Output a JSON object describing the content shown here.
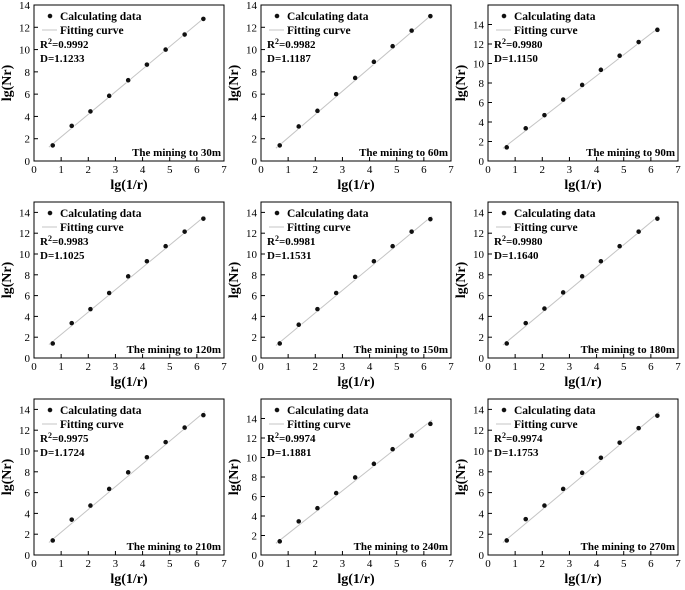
{
  "colors": {
    "background": "#ffffff",
    "axis": "#000000",
    "marker": "#111111",
    "fit_line": "#c4c4c4"
  },
  "chart_data": [
    {
      "type": "scatter",
      "caption": "The mining to 30m",
      "r2_label": "R",
      "r2_sup": "2",
      "r2_value": "=0.9992",
      "d_label": "D=1.1233",
      "legend": [
        "Calculating data",
        "Fitting curve"
      ],
      "xlabel": "lg(1/r)",
      "ylabel": "lg(Nr)",
      "xlim": [
        0,
        7
      ],
      "ylim": [
        0,
        14
      ],
      "xticks": [
        0,
        1,
        2,
        3,
        4,
        5,
        6,
        7
      ],
      "yticks": [
        0,
        2,
        4,
        6,
        8,
        10,
        12,
        14
      ],
      "x": [
        0.69,
        1.39,
        2.08,
        2.77,
        3.47,
        4.16,
        4.85,
        5.55,
        6.24
      ],
      "y": [
        1.4,
        3.15,
        4.45,
        5.85,
        7.25,
        8.65,
        10.0,
        11.35,
        12.75
      ],
      "fit": [
        [
          0.55,
          1.25
        ],
        [
          6.3,
          12.9
        ]
      ]
    },
    {
      "type": "scatter",
      "caption": "The mining to 60m",
      "r2_label": "R",
      "r2_sup": "2",
      "r2_value": "=0.9982",
      "d_label": "D=1.1187",
      "legend": [
        "Calculating data",
        "Fitting curve"
      ],
      "xlabel": "lg(1/r)",
      "ylabel": "lg(Nr)",
      "xlim": [
        0,
        7
      ],
      "ylim": [
        0,
        14
      ],
      "xticks": [
        0,
        1,
        2,
        3,
        4,
        5,
        6,
        7
      ],
      "yticks": [
        0,
        2,
        4,
        6,
        8,
        10,
        12,
        14
      ],
      "x": [
        0.69,
        1.39,
        2.08,
        2.77,
        3.47,
        4.16,
        4.85,
        5.55,
        6.24
      ],
      "y": [
        1.4,
        3.1,
        4.5,
        6.0,
        7.45,
        8.9,
        10.3,
        11.7,
        13.0
      ],
      "fit": [
        [
          0.55,
          1.15
        ],
        [
          6.3,
          13.15
        ]
      ]
    },
    {
      "type": "scatter",
      "caption": "The mining to 90m",
      "r2_label": "R",
      "r2_sup": "2",
      "r2_value": "=0.9980",
      "d_label": "D=1.1150",
      "legend": [
        "Calculating data",
        "Fitting curve"
      ],
      "xlabel": "lg(1/r)",
      "ylabel": "lg(Nr)",
      "xlim": [
        0,
        7
      ],
      "ylim": [
        0,
        16
      ],
      "xticks": [
        0,
        1,
        2,
        3,
        4,
        5,
        6,
        7
      ],
      "yticks": [
        0,
        2,
        4,
        6,
        8,
        10,
        12,
        14
      ],
      "x": [
        0.69,
        1.39,
        2.08,
        2.77,
        3.47,
        4.16,
        4.85,
        5.55,
        6.24
      ],
      "y": [
        1.4,
        3.35,
        4.7,
        6.3,
        7.8,
        9.35,
        10.8,
        12.2,
        13.45
      ],
      "fit": [
        [
          0.55,
          1.3
        ],
        [
          6.3,
          13.7
        ]
      ]
    },
    {
      "type": "scatter",
      "caption": "The mining to 120m",
      "r2_label": "R",
      "r2_sup": "2",
      "r2_value": "=0.9983",
      "d_label": "D=1.1025",
      "legend": [
        "Calculating data",
        "Fitting curve"
      ],
      "xlabel": "lg(1/r)",
      "ylabel": "lg(Nr)",
      "xlim": [
        0,
        7
      ],
      "ylim": [
        0,
        15
      ],
      "xticks": [
        0,
        1,
        2,
        3,
        4,
        5,
        6,
        7
      ],
      "yticks": [
        0,
        2,
        4,
        6,
        8,
        10,
        12,
        14
      ],
      "x": [
        0.69,
        1.39,
        2.08,
        2.77,
        3.47,
        4.16,
        4.85,
        5.55,
        6.24
      ],
      "y": [
        1.4,
        3.35,
        4.7,
        6.25,
        7.85,
        9.3,
        10.75,
        12.15,
        13.4
      ],
      "fit": [
        [
          0.55,
          1.3
        ],
        [
          6.3,
          13.65
        ]
      ]
    },
    {
      "type": "scatter",
      "caption": "The mining to 150m",
      "r2_label": "R",
      "r2_sup": "2",
      "r2_value": "=0.9981",
      "d_label": "D=1.1531",
      "legend": [
        "Calculating data",
        "Fitting curve"
      ],
      "xlabel": "lg(1/r)",
      "ylabel": "lg(Nr)",
      "xlim": [
        0,
        7
      ],
      "ylim": [
        0,
        15
      ],
      "xticks": [
        0,
        1,
        2,
        3,
        4,
        5,
        6,
        7
      ],
      "yticks": [
        0,
        2,
        4,
        6,
        8,
        10,
        12,
        14
      ],
      "x": [
        0.69,
        1.39,
        2.08,
        2.77,
        3.47,
        4.16,
        4.85,
        5.55,
        6.24
      ],
      "y": [
        1.4,
        3.2,
        4.7,
        6.25,
        7.8,
        9.3,
        10.75,
        12.15,
        13.35
      ],
      "fit": [
        [
          0.55,
          1.2
        ],
        [
          6.3,
          13.65
        ]
      ]
    },
    {
      "type": "scatter",
      "caption": "The mining to 180m",
      "r2_label": "R",
      "r2_sup": "2",
      "r2_value": "=0.9980",
      "d_label": "D=1.1640",
      "legend": [
        "Calculating data",
        "Fitting curve"
      ],
      "xlabel": "lg(1/r)",
      "ylabel": "lg(Nr)",
      "xlim": [
        0,
        7
      ],
      "ylim": [
        0,
        15
      ],
      "xticks": [
        0,
        1,
        2,
        3,
        4,
        5,
        6,
        7
      ],
      "yticks": [
        0,
        2,
        4,
        6,
        8,
        10,
        12,
        14
      ],
      "x": [
        0.69,
        1.39,
        2.08,
        2.77,
        3.47,
        4.16,
        4.85,
        5.55,
        6.24
      ],
      "y": [
        1.4,
        3.35,
        4.75,
        6.3,
        7.85,
        9.3,
        10.75,
        12.15,
        13.4
      ],
      "fit": [
        [
          0.55,
          1.25
        ],
        [
          6.3,
          13.7
        ]
      ]
    },
    {
      "type": "scatter",
      "caption": "The mining to 210m",
      "r2_label": "R",
      "r2_sup": "2",
      "r2_value": "=0.9975",
      "d_label": "D=1.1724",
      "legend": [
        "Calculating data",
        "Fitting curve"
      ],
      "xlabel": "lg(1/r)",
      "ylabel": "lg(Nr)",
      "xlim": [
        0,
        7
      ],
      "ylim": [
        0,
        15
      ],
      "xticks": [
        0,
        1,
        2,
        3,
        4,
        5,
        6,
        7
      ],
      "yticks": [
        0,
        2,
        4,
        6,
        8,
        10,
        12,
        14
      ],
      "x": [
        0.69,
        1.39,
        2.08,
        2.77,
        3.47,
        4.16,
        4.85,
        5.55,
        6.24
      ],
      "y": [
        1.4,
        3.4,
        4.75,
        6.35,
        7.95,
        9.4,
        10.85,
        12.25,
        13.45
      ],
      "fit": [
        [
          0.55,
          1.2
        ],
        [
          6.3,
          13.8
        ]
      ]
    },
    {
      "type": "scatter",
      "caption": "The mining to 240m",
      "r2_label": "R",
      "r2_sup": "2",
      "r2_value": "=0.9974",
      "d_label": "D=1.1881",
      "legend": [
        "Calculating data",
        "Fitting curve"
      ],
      "xlabel": "lg(1/r)",
      "ylabel": "lg(Nr)",
      "xlim": [
        0,
        7
      ],
      "ylim": [
        0,
        16
      ],
      "xticks": [
        0,
        1,
        2,
        3,
        4,
        5,
        6,
        7
      ],
      "yticks": [
        0,
        2,
        4,
        6,
        8,
        10,
        12,
        14
      ],
      "x": [
        0.69,
        1.39,
        2.08,
        2.77,
        3.47,
        4.16,
        4.85,
        5.55,
        6.24
      ],
      "y": [
        1.4,
        3.45,
        4.8,
        6.35,
        7.95,
        9.35,
        10.85,
        12.25,
        13.45
      ],
      "fit": [
        [
          0.55,
          1.2
        ],
        [
          6.3,
          13.85
        ]
      ]
    },
    {
      "type": "scatter",
      "caption": "The mining to 270m",
      "r2_label": "R",
      "r2_sup": "2",
      "r2_value": "=0.9974",
      "d_label": "D=1.1753",
      "legend": [
        "Calculating data",
        "Fitting curve"
      ],
      "xlabel": "lg(1/r)",
      "ylabel": "lg(Nr)",
      "xlim": [
        0,
        7
      ],
      "ylim": [
        0,
        15
      ],
      "xticks": [
        0,
        1,
        2,
        3,
        4,
        5,
        6,
        7
      ],
      "yticks": [
        0,
        2,
        4,
        6,
        8,
        10,
        12,
        14
      ],
      "x": [
        0.69,
        1.39,
        2.08,
        2.77,
        3.47,
        4.16,
        4.85,
        5.55,
        6.24
      ],
      "y": [
        1.4,
        3.45,
        4.75,
        6.35,
        7.9,
        9.35,
        10.8,
        12.2,
        13.4
      ],
      "fit": [
        [
          0.55,
          1.2
        ],
        [
          6.3,
          13.75
        ]
      ]
    }
  ]
}
